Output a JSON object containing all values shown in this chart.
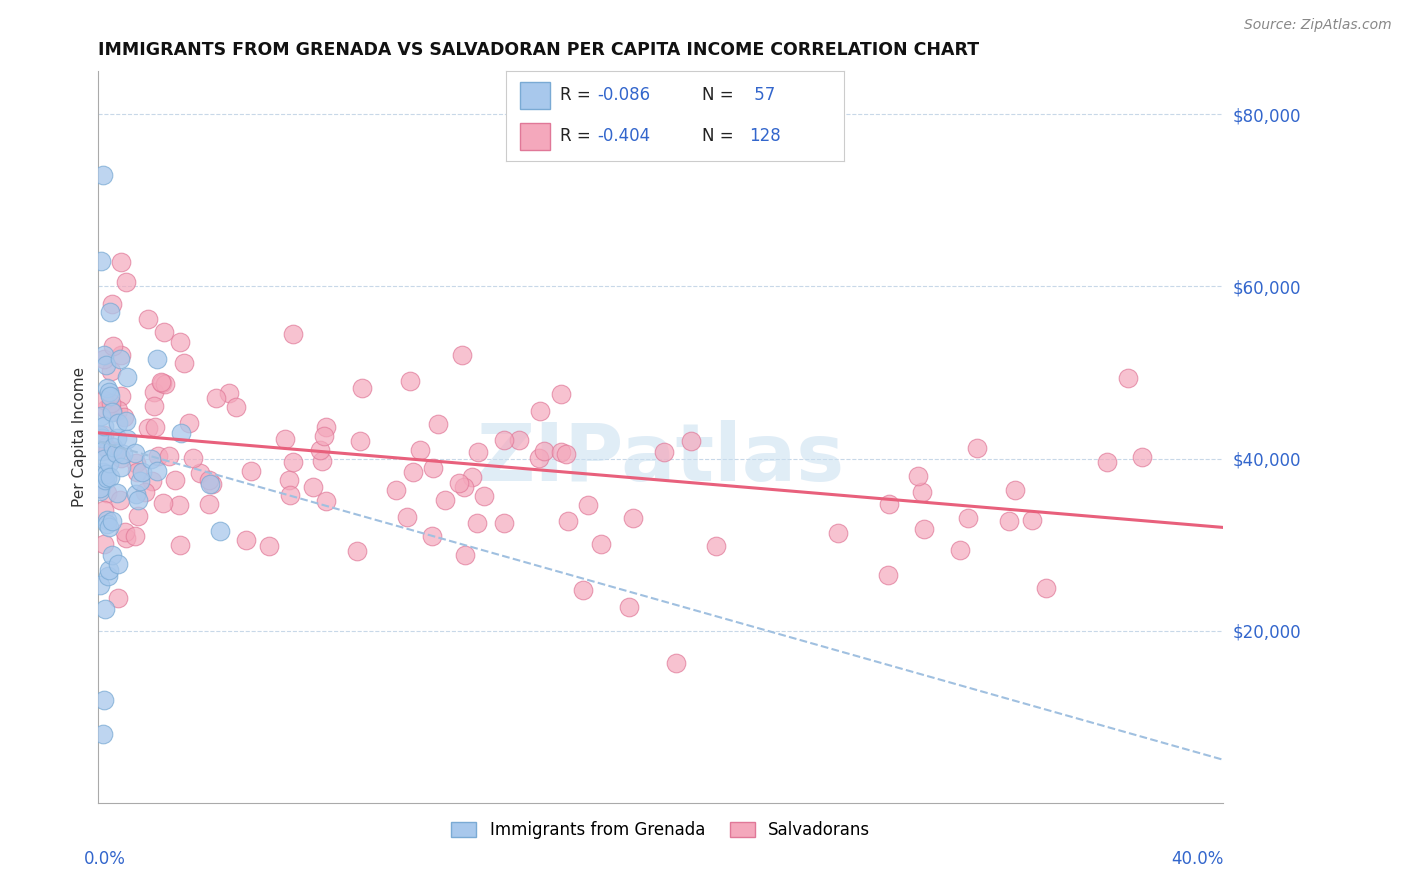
{
  "title": "IMMIGRANTS FROM GRENADA VS SALVADORAN PER CAPITA INCOME CORRELATION CHART",
  "source": "Source: ZipAtlas.com",
  "ylabel": "Per Capita Income",
  "yticks": [
    0,
    20000,
    40000,
    60000,
    80000
  ],
  "ytick_labels": [
    "",
    "$20,000",
    "$40,000",
    "$60,000",
    "$80,000"
  ],
  "xlim": [
    0.0,
    40.0
  ],
  "ylim": [
    0,
    85000
  ],
  "legend_r1": "R = -0.086",
  "legend_n1": "N =  57",
  "legend_r2": "R = -0.404",
  "legend_n2": "N = 128",
  "color_blue": "#a8c8ec",
  "color_blue_edge": "#7aaad4",
  "color_pink": "#f4a8bc",
  "color_pink_edge": "#e07898",
  "color_trend_blue": "#a0c0e0",
  "color_trend_pink": "#e8607c",
  "watermark": "ZIPatlas",
  "blue_trend_x0": 0.0,
  "blue_trend_y0": 42000,
  "blue_trend_x1": 40.0,
  "blue_trend_y1": 5000,
  "pink_trend_x0": 0.0,
  "pink_trend_y0": 43000,
  "pink_trend_x1": 40.0,
  "pink_trend_y1": 32000
}
